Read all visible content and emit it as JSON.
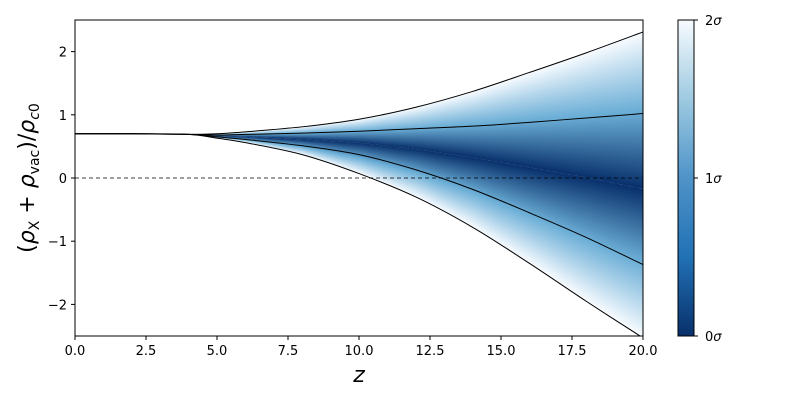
{
  "chart_data": {
    "type": "area",
    "xlabel": "z",
    "ylabel": "(ρ_X + ρ_vac)/ρ_c0",
    "xlim": [
      0,
      20
    ],
    "ylim": [
      -2.5,
      2.5
    ],
    "x_ticks": [
      "0.0",
      "2.5",
      "5.0",
      "7.5",
      "10.0",
      "12.5",
      "15.0",
      "17.5",
      "20.0"
    ],
    "y_ticks": [
      "−2",
      "−1",
      "0",
      "1",
      "2"
    ],
    "reference_line": {
      "y": 0,
      "style": "dashed"
    },
    "x": [
      0,
      2,
      4,
      5,
      6,
      8,
      10,
      12,
      14,
      16,
      18,
      20
    ],
    "series": [
      {
        "role": "upper-2-sigma",
        "values": [
          0.7,
          0.7,
          0.69,
          0.7,
          0.73,
          0.81,
          0.93,
          1.12,
          1.37,
          1.67,
          1.98,
          2.31
        ]
      },
      {
        "role": "upper-1-sigma",
        "values": [
          0.7,
          0.7,
          0.69,
          0.68,
          0.69,
          0.71,
          0.74,
          0.78,
          0.82,
          0.88,
          0.95,
          1.02
        ]
      },
      {
        "role": "lower-1-sigma",
        "values": [
          0.7,
          0.7,
          0.69,
          0.65,
          0.61,
          0.51,
          0.37,
          0.13,
          -0.18,
          -0.55,
          -0.94,
          -1.37
        ]
      },
      {
        "role": "lower-2-sigma",
        "values": [
          0.7,
          0.7,
          0.69,
          0.63,
          0.56,
          0.37,
          0.07,
          -0.3,
          -0.78,
          -1.35,
          -1.95,
          -2.53
        ]
      }
    ],
    "colorbar": {
      "colormap": "Blues_r",
      "colors": {
        "dark": "#08306b",
        "mid": "#4f93c8",
        "light": "#f7fbff"
      },
      "ticks": [
        "0σ",
        "1σ",
        "2σ"
      ]
    }
  }
}
